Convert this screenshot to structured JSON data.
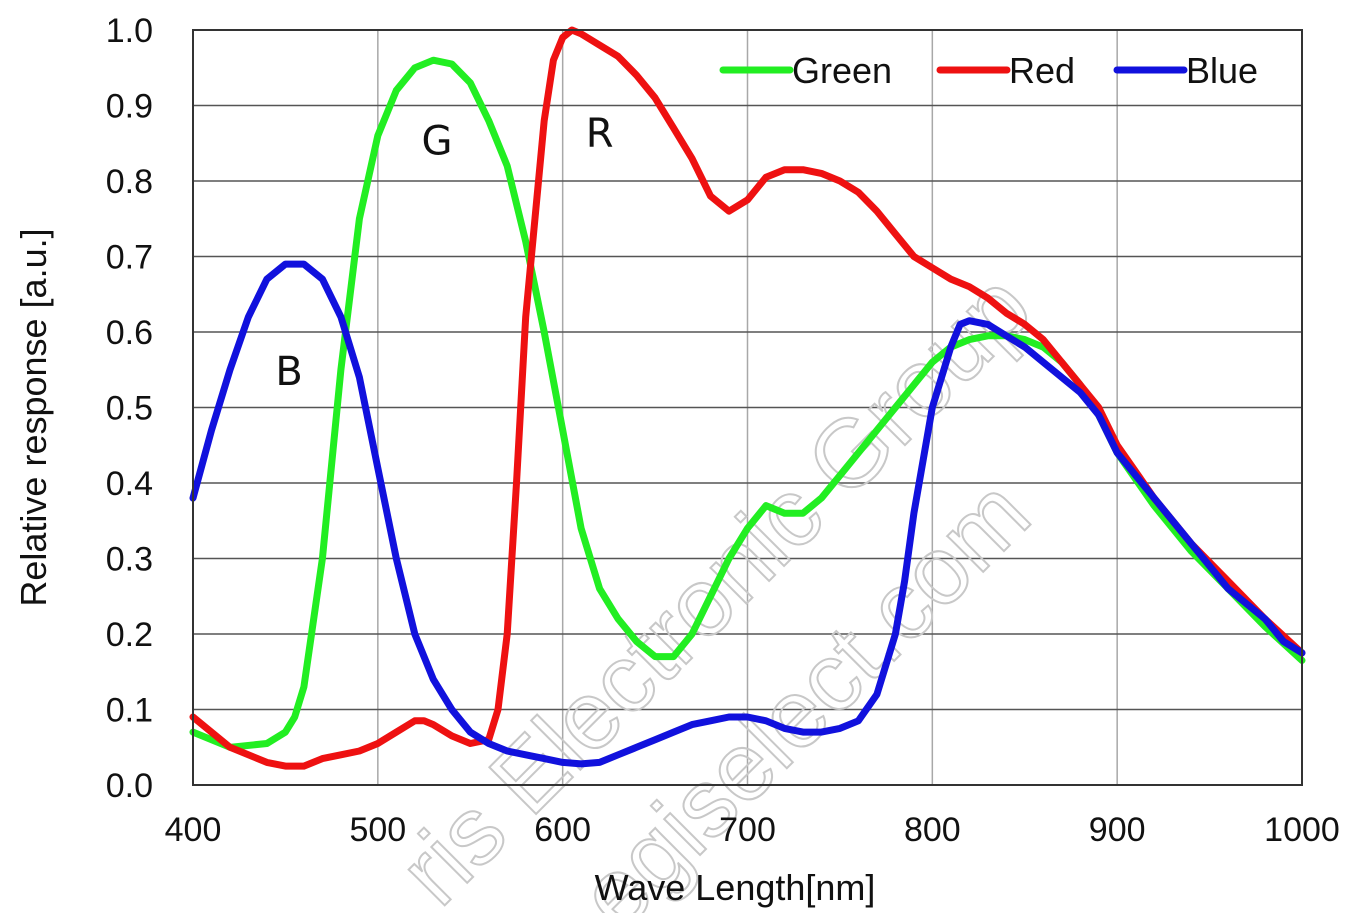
{
  "chart_data": {
    "type": "line",
    "xlabel": "Wave Length[nm]",
    "ylabel": "Relative response [a.u.]",
    "xlim": [
      400,
      1000
    ],
    "ylim": [
      0.0,
      1.0
    ],
    "xticks": [
      "400",
      "500",
      "600",
      "700",
      "800",
      "900",
      "1000"
    ],
    "xtick_values": [
      400,
      500,
      600,
      700,
      800,
      900,
      1000
    ],
    "yticks": [
      "0.0",
      "0.1",
      "0.2",
      "0.3",
      "0.4",
      "0.5",
      "0.6",
      "0.7",
      "0.8",
      "0.9",
      "1.0"
    ],
    "ytick_values": [
      0.0,
      0.1,
      0.2,
      0.3,
      0.4,
      0.5,
      0.6,
      0.7,
      0.8,
      0.9,
      1.0
    ],
    "grid": true,
    "legend_position": "top-right",
    "series": [
      {
        "name": "Green",
        "color": "#22ee22",
        "x": [
          400,
          420,
          440,
          450,
          455,
          460,
          470,
          480,
          490,
          500,
          510,
          520,
          530,
          540,
          550,
          560,
          570,
          580,
          590,
          600,
          610,
          620,
          630,
          640,
          650,
          660,
          670,
          680,
          690,
          700,
          710,
          720,
          730,
          740,
          750,
          760,
          770,
          780,
          790,
          800,
          810,
          820,
          830,
          840,
          850,
          860,
          870,
          880,
          890,
          900,
          920,
          940,
          960,
          980,
          1000
        ],
        "y": [
          0.07,
          0.05,
          0.055,
          0.07,
          0.09,
          0.13,
          0.3,
          0.55,
          0.75,
          0.86,
          0.92,
          0.95,
          0.96,
          0.955,
          0.93,
          0.88,
          0.82,
          0.72,
          0.6,
          0.47,
          0.34,
          0.26,
          0.22,
          0.19,
          0.17,
          0.17,
          0.2,
          0.25,
          0.3,
          0.34,
          0.37,
          0.36,
          0.36,
          0.38,
          0.41,
          0.44,
          0.47,
          0.5,
          0.53,
          0.56,
          0.58,
          0.59,
          0.595,
          0.595,
          0.59,
          0.58,
          0.56,
          0.53,
          0.49,
          0.44,
          0.37,
          0.31,
          0.26,
          0.21,
          0.165
        ]
      },
      {
        "name": "Red",
        "color": "#ee1111",
        "x": [
          400,
          420,
          440,
          450,
          460,
          470,
          480,
          490,
          500,
          510,
          520,
          525,
          530,
          540,
          550,
          560,
          565,
          570,
          575,
          580,
          590,
          595,
          600,
          605,
          610,
          620,
          630,
          640,
          650,
          660,
          670,
          680,
          690,
          700,
          710,
          720,
          730,
          740,
          750,
          760,
          770,
          780,
          790,
          800,
          810,
          820,
          830,
          840,
          850,
          860,
          870,
          880,
          890,
          900,
          920,
          940,
          960,
          980,
          1000
        ],
        "y": [
          0.09,
          0.05,
          0.03,
          0.025,
          0.025,
          0.035,
          0.04,
          0.045,
          0.055,
          0.07,
          0.085,
          0.085,
          0.08,
          0.065,
          0.055,
          0.06,
          0.1,
          0.2,
          0.4,
          0.62,
          0.88,
          0.96,
          0.99,
          1.0,
          0.995,
          0.98,
          0.965,
          0.94,
          0.91,
          0.87,
          0.83,
          0.78,
          0.76,
          0.775,
          0.805,
          0.815,
          0.815,
          0.81,
          0.8,
          0.785,
          0.76,
          0.73,
          0.7,
          0.685,
          0.67,
          0.66,
          0.645,
          0.625,
          0.61,
          0.59,
          0.56,
          0.53,
          0.5,
          0.45,
          0.38,
          0.32,
          0.27,
          0.22,
          0.175
        ]
      },
      {
        "name": "Blue",
        "color": "#1111dd",
        "x": [
          400,
          410,
          420,
          430,
          440,
          450,
          460,
          470,
          480,
          490,
          500,
          510,
          520,
          530,
          540,
          550,
          560,
          570,
          580,
          590,
          600,
          610,
          620,
          630,
          640,
          650,
          660,
          670,
          680,
          690,
          700,
          710,
          720,
          730,
          740,
          750,
          760,
          770,
          780,
          785,
          790,
          800,
          810,
          815,
          820,
          830,
          840,
          850,
          860,
          870,
          880,
          890,
          900,
          920,
          940,
          960,
          980,
          990,
          1000
        ],
        "y": [
          0.38,
          0.47,
          0.55,
          0.62,
          0.67,
          0.69,
          0.69,
          0.67,
          0.62,
          0.54,
          0.42,
          0.3,
          0.2,
          0.14,
          0.1,
          0.07,
          0.055,
          0.045,
          0.04,
          0.035,
          0.03,
          0.028,
          0.03,
          0.04,
          0.05,
          0.06,
          0.07,
          0.08,
          0.085,
          0.09,
          0.09,
          0.085,
          0.075,
          0.07,
          0.07,
          0.075,
          0.085,
          0.12,
          0.2,
          0.27,
          0.36,
          0.5,
          0.58,
          0.61,
          0.615,
          0.61,
          0.595,
          0.58,
          0.56,
          0.54,
          0.52,
          0.49,
          0.44,
          0.38,
          0.32,
          0.26,
          0.22,
          0.19,
          0.175
        ]
      }
    ],
    "annotations": [
      {
        "text": "B",
        "x": 452,
        "y": 0.53
      },
      {
        "text": "G",
        "x": 532,
        "y": 0.835
      },
      {
        "text": "R",
        "x": 620,
        "y": 0.845
      }
    ]
  },
  "watermark": {
    "line1": "ris Electronic Group",
    "line2": "egiselect.com"
  }
}
